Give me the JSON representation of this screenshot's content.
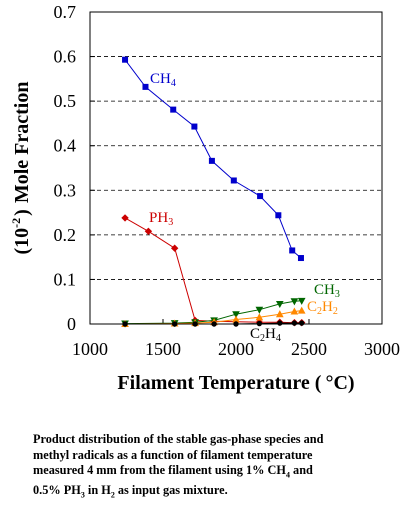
{
  "chart_data": {
    "type": "line",
    "xlabel_text": "Filament Temperature (",
    "xlabel_unit": "°C)",
    "ylabel_main": "Mole Fraction",
    "ylabel_exp_base": "(10",
    "ylabel_exp_power": "-2",
    "ylabel_exp_close": ")",
    "xlim": [
      1000,
      3000
    ],
    "ylim": [
      0,
      0.7
    ],
    "x_ticks": [
      1000,
      1500,
      2000,
      2500,
      3000
    ],
    "x_tick_labels": [
      "1000",
      "1500",
      "2000",
      "2500",
      "3000"
    ],
    "y_ticks": [
      0,
      0.1,
      0.2,
      0.3,
      0.4,
      0.5,
      0.6,
      0.7
    ],
    "y_tick_labels": [
      "0",
      "0.1",
      "0.2",
      "0.3",
      "0.4",
      "0.5",
      "0.6",
      "0.7"
    ],
    "grid": "horizontal dashed",
    "series": [
      {
        "name": "CH4",
        "label_base": "CH",
        "label_sub": "4",
        "color": "#0000cc",
        "marker": "square",
        "x": [
          1240,
          1380,
          1570,
          1715,
          1835,
          1985,
          2165,
          2290,
          2385,
          2445
        ],
        "y": [
          0.593,
          0.532,
          0.481,
          0.443,
          0.366,
          0.322,
          0.287,
          0.244,
          0.165,
          0.148
        ]
      },
      {
        "name": "PH3",
        "label_base": "PH",
        "label_sub": "3",
        "color": "#cc0000",
        "marker": "diamond",
        "x": [
          1240,
          1400,
          1580,
          1720,
          1850,
          2000,
          2160,
          2300,
          2400,
          2450
        ],
        "y": [
          0.238,
          0.208,
          0.17,
          0.008,
          0.006,
          0.005,
          0.004,
          0.004,
          0.003,
          0.003
        ]
      },
      {
        "name": "CH3",
        "label_base": "CH",
        "label_sub": "3",
        "color": "#006600",
        "marker": "triangle-down",
        "x": [
          1240,
          1580,
          1720,
          1850,
          2000,
          2160,
          2300,
          2400,
          2450
        ],
        "y": [
          0.001,
          0.002,
          0.004,
          0.008,
          0.022,
          0.032,
          0.045,
          0.051,
          0.052
        ]
      },
      {
        "name": "C2H2",
        "label_base": "C",
        "label_sub": "2",
        "label_base2": "H",
        "label_sub2": "2",
        "color": "#ff8800",
        "marker": "triangle-up",
        "x": [
          1240,
          1580,
          1720,
          1850,
          2000,
          2160,
          2300,
          2400,
          2450
        ],
        "y": [
          0.0,
          0.001,
          0.002,
          0.004,
          0.01,
          0.015,
          0.022,
          0.028,
          0.03
        ]
      },
      {
        "name": "C2H4",
        "label_base": "C",
        "label_sub": "2",
        "label_base2": "H",
        "label_sub2": "4",
        "color": "#000000",
        "marker": "circle",
        "x": [
          1240,
          1580,
          1720,
          1850,
          2000,
          2160,
          2300,
          2400,
          2450
        ],
        "y": [
          0.0,
          0.0,
          0.0,
          0.0,
          0.0,
          0.001,
          0.002,
          0.002,
          0.002
        ]
      }
    ]
  },
  "caption": {
    "line1": "Product distribution of the  stable gas-phase species and",
    "line2": "methyl radicals as a function of filament temperature",
    "line3_a": "measured 4 mm from the filament using 1% CH",
    "line3_sub": "4",
    "line3_b": " and",
    "line4_a": "0.5% PH",
    "line4_sub1": "3",
    "line4_b": "  in H",
    "line4_sub2": "2",
    "line4_c": "  as input gas mixture."
  }
}
